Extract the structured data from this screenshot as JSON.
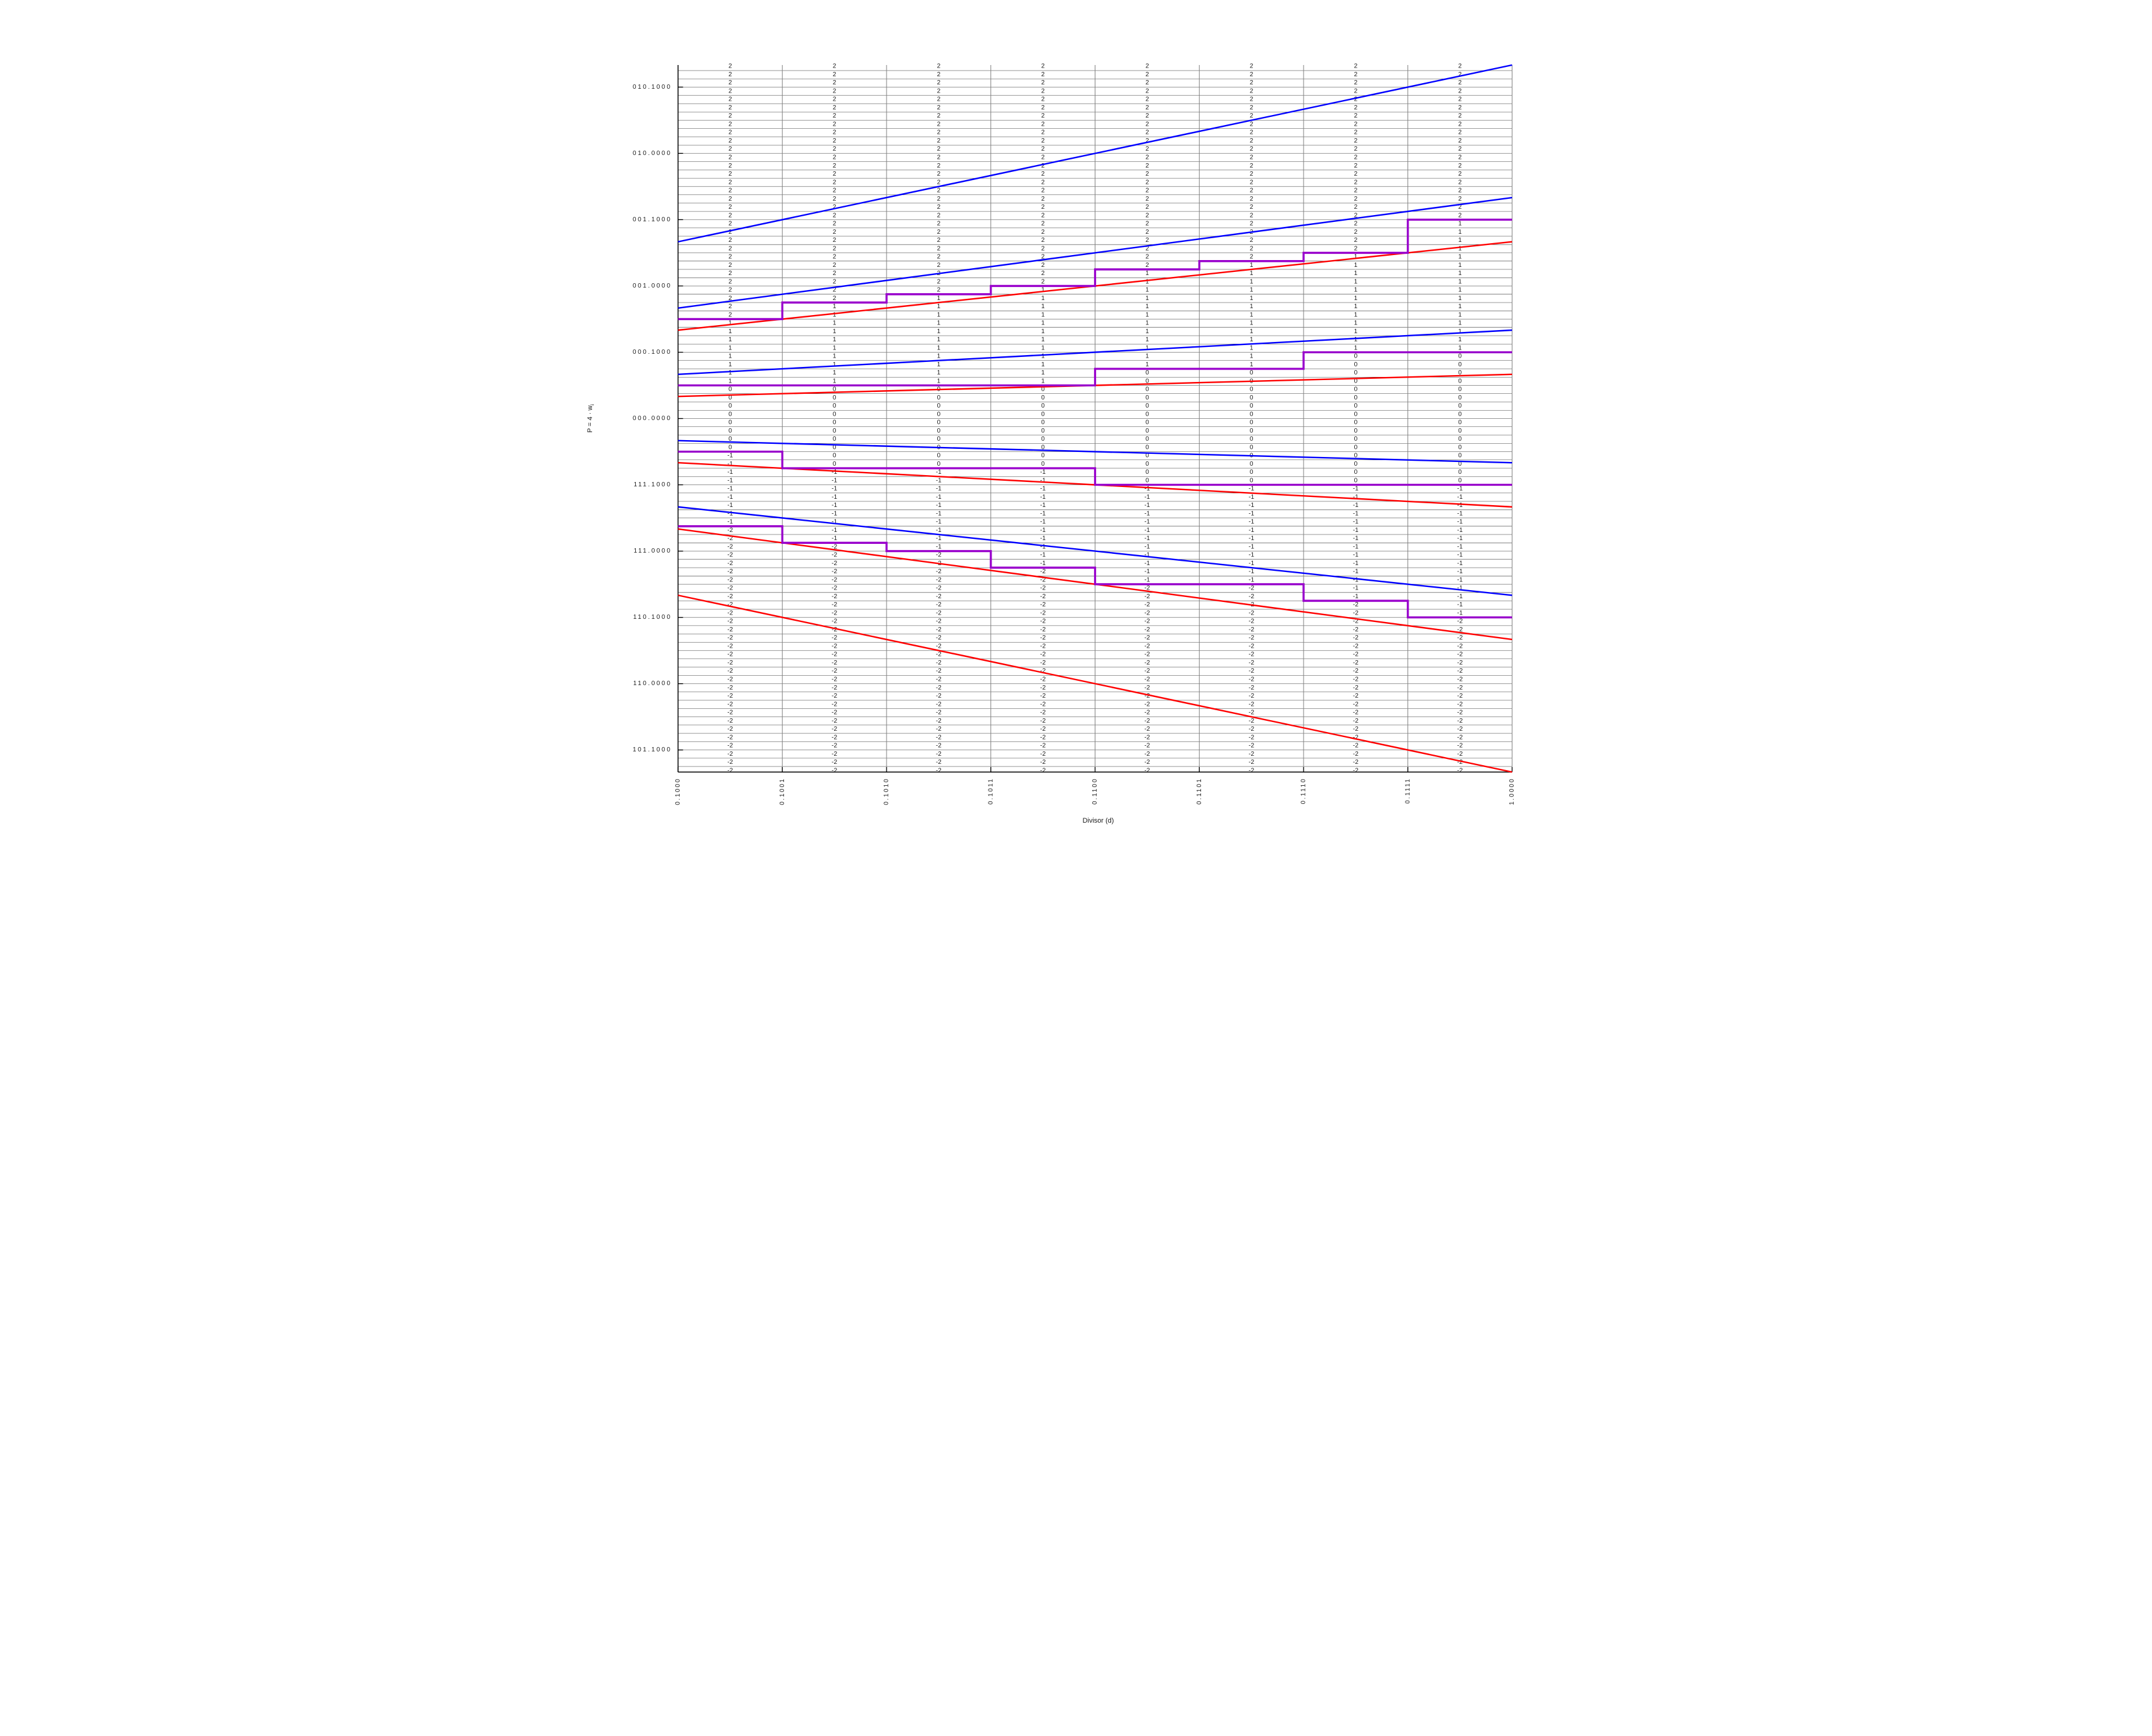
{
  "chart_data": {
    "type": "line",
    "title": "",
    "xlabel": "Divisor (d)",
    "ylabel_main": "P = 4 · w",
    "ylabel_sub": "i",
    "xlim": [
      0.5,
      1.0
    ],
    "ylim": [
      -2.666667,
      2.666667
    ],
    "grid_step": 0.0625,
    "x_ticks": {
      "labels": [
        "0.1000",
        "0.1001",
        "0.1010",
        "0.1011",
        "0.1100",
        "0.1101",
        "0.1110",
        "0.1111",
        "1.0000"
      ],
      "values": [
        0.5,
        0.5625,
        0.625,
        0.6875,
        0.75,
        0.8125,
        0.875,
        0.9375,
        1.0
      ]
    },
    "y_ticks": {
      "labels": [
        "010.1000",
        "010.0000",
        "001.1000",
        "001.0000",
        "000.1000",
        "000.0000",
        "111.1000",
        "111.0000",
        "110.1000",
        "110.0000",
        "101.1000"
      ],
      "values": [
        2.5,
        2.0,
        1.5,
        1.0,
        0.5,
        0.0,
        -0.5,
        -1.0,
        -1.5,
        -2.0,
        -2.5
      ]
    },
    "divisor_edges": [
      0.5,
      0.5625,
      0.625,
      0.6875,
      0.75,
      0.8125,
      0.875,
      0.9375,
      1.0
    ],
    "digit_set": [
      -2,
      -1,
      0,
      1,
      2
    ],
    "boundary_lines": {
      "upper_blue_slopes": [
        2.666667,
        1.666667,
        0.666667,
        -0.333333,
        -1.333333
      ],
      "lower_red_slopes": [
        1.333333,
        0.333333,
        -0.666667,
        -1.666667,
        -2.666667
      ]
    },
    "selection_staircases_sixteenths": {
      "m2": [
        12,
        14,
        15,
        16,
        18,
        19,
        20,
        24
      ],
      "m1": [
        4,
        4,
        4,
        4,
        6,
        6,
        8,
        8
      ],
      "m0": [
        -4,
        -6,
        -6,
        -6,
        -8,
        -8,
        -8,
        -8
      ],
      "m-1": [
        -13,
        -15,
        -16,
        -18,
        -20,
        -20,
        -22,
        -24
      ]
    }
  },
  "colors": {
    "upper_bound": "#0000ff",
    "lower_bound": "#ff0000",
    "staircase": "#9900cc",
    "grid_fine": "#3c3c3c",
    "grid_minor": "#999999",
    "grid_vertical": "#808080",
    "axis": "#000000",
    "text": "#1a1a1a",
    "background": "#ffffff"
  }
}
